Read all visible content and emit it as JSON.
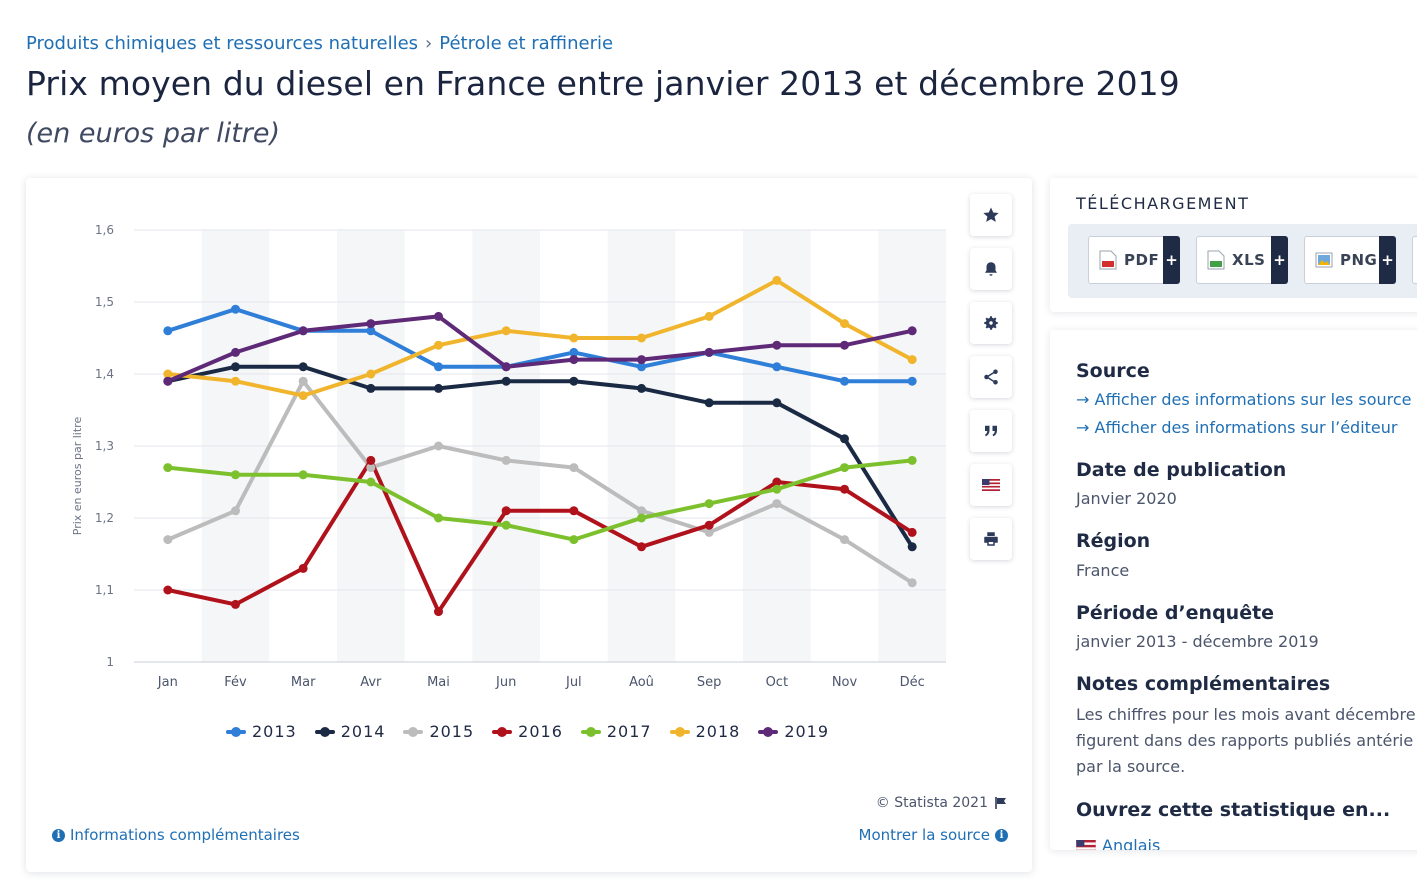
{
  "breadcrumb": {
    "items": [
      "Produits chimiques et ressources naturelles",
      "Pétrole et raffinerie"
    ],
    "separator": "›"
  },
  "page": {
    "title": "Prix moyen du diesel en France entre janvier 2013 et décembre 2019",
    "subtitle": "(en euros par litre)"
  },
  "toolbar": {
    "icons": [
      "star-icon",
      "bell-icon",
      "gear-icon",
      "share-icon",
      "quote-icon",
      "flag-us-icon",
      "print-icon"
    ]
  },
  "chart_footer": {
    "copyright": "© Statista 2021",
    "info_link": "Informations complémentaires",
    "source_link": "Montrer la source"
  },
  "download": {
    "title": "TÉLÉCHARGEMENT",
    "buttons": [
      {
        "label": "PDF",
        "plus": "+"
      },
      {
        "label": "XLS",
        "plus": "+"
      },
      {
        "label": "PNG",
        "plus": "+"
      }
    ]
  },
  "info": {
    "source_heading": "Source",
    "source_link_1": "→ Afficher des informations sur les source",
    "source_link_2": "→ Afficher des informations sur l’éditeur",
    "pub_heading": "Date de publication",
    "pub_value": "Janvier 2020",
    "region_heading": "Région",
    "region_value": "France",
    "period_heading": "Période d’enquête",
    "period_value": "janvier 2013 - décembre 2019",
    "notes_heading": "Notes complémentaires",
    "notes_lines": [
      "Les chiffres pour les mois avant décembre",
      "figurent dans des rapports publiés antérie",
      "par la source."
    ],
    "open_heading": "Ouvrez cette statistique en...",
    "open_item": "Anglais"
  },
  "chart_data": {
    "type": "line",
    "title": "",
    "xlabel": "",
    "ylabel": "Prix en euros par litre",
    "categories": [
      "Jan",
      "Fév",
      "Mar",
      "Avr",
      "Mai",
      "Jun",
      "Jul",
      "Aoû",
      "Sep",
      "Oct",
      "Nov",
      "Déc"
    ],
    "ylim": [
      1,
      1.6
    ],
    "yticks": [
      "1",
      "1,1",
      "1,2",
      "1,3",
      "1,4",
      "1,5",
      "1,6"
    ],
    "grid": true,
    "legend_position": "bottom",
    "series": [
      {
        "name": "2013",
        "color": "#2f7ed8",
        "values": [
          1.46,
          1.49,
          1.46,
          1.46,
          1.41,
          1.41,
          1.43,
          1.41,
          1.43,
          1.41,
          1.39,
          1.39
        ]
      },
      {
        "name": "2014",
        "color": "#1b2a44",
        "values": [
          1.39,
          1.41,
          1.41,
          1.38,
          1.38,
          1.39,
          1.39,
          1.38,
          1.36,
          1.36,
          1.31,
          1.16
        ]
      },
      {
        "name": "2015",
        "color": "#bcbcbc",
        "values": [
          1.17,
          1.21,
          1.39,
          1.27,
          1.3,
          1.28,
          1.27,
          1.21,
          1.18,
          1.22,
          1.17,
          1.11
        ]
      },
      {
        "name": "2016",
        "color": "#b0121b",
        "values": [
          1.1,
          1.08,
          1.13,
          1.28,
          1.07,
          1.21,
          1.21,
          1.16,
          1.19,
          1.25,
          1.24,
          1.18
        ]
      },
      {
        "name": "2017",
        "color": "#7cc12d",
        "values": [
          1.27,
          1.26,
          1.26,
          1.25,
          1.2,
          1.19,
          1.17,
          1.2,
          1.22,
          1.24,
          1.27,
          1.28
        ]
      },
      {
        "name": "2018",
        "color": "#f0b52d",
        "values": [
          1.4,
          1.39,
          1.37,
          1.4,
          1.44,
          1.46,
          1.45,
          1.45,
          1.48,
          1.53,
          1.47,
          1.42
        ]
      },
      {
        "name": "2019",
        "color": "#5e2a78",
        "values": [
          1.39,
          1.43,
          1.46,
          1.47,
          1.48,
          1.41,
          1.42,
          1.42,
          1.43,
          1.44,
          1.44,
          1.46
        ]
      }
    ]
  }
}
